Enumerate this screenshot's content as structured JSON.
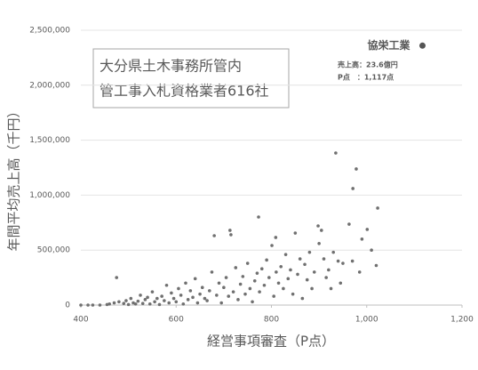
{
  "chart_data": {
    "type": "scatter",
    "x_label": "経営事項審査（P点）",
    "y_label": "年間平均売上高（千円）",
    "title_box": [
      "大分県土木事務所管内",
      "管工事入札資格業者616社"
    ],
    "highlight_notes": [
      "売上高：23.6億円",
      "P点　：1,117点"
    ],
    "xlim": [
      400,
      1200
    ],
    "xticks": [
      400,
      600,
      800,
      {
        "value": 1000,
        "label": "1,000"
      },
      {
        "value": 1200,
        "label": "1,200"
      }
    ],
    "ylim": [
      0,
      2500000
    ],
    "yticks": [
      0,
      {
        "value": 500000,
        "label": "500,000"
      },
      {
        "value": 1000000,
        "label": "1,000,000"
      },
      {
        "value": 1500000,
        "label": "1,500,000"
      },
      {
        "value": 2000000,
        "label": "2,000,000"
      },
      {
        "value": 2500000,
        "label": "2,500,000"
      }
    ],
    "grid": true,
    "series": [
      {
        "color": "#707070",
        "x": [
          400,
          415,
          425,
          440,
          455,
          460,
          470,
          475,
          480,
          490,
          495,
          500,
          505,
          510,
          515,
          520,
          525,
          530,
          535,
          540,
          545,
          550,
          555,
          560,
          565,
          570,
          575,
          580,
          585,
          590,
          595,
          600,
          605,
          610,
          615,
          620,
          625,
          630,
          635,
          640,
          645,
          650,
          655,
          660,
          665,
          670,
          675,
          680,
          685,
          690,
          695,
          700,
          705,
          710,
          713,
          715,
          720,
          725,
          730,
          735,
          740,
          745,
          750,
          755,
          760,
          765,
          770,
          773,
          775,
          780,
          785,
          790,
          795,
          801,
          805,
          809,
          810,
          815,
          820,
          825,
          830,
          835,
          840,
          845,
          850,
          855,
          860,
          865,
          870,
          875,
          880,
          885,
          890,
          898,
          900,
          905,
          910,
          915,
          920,
          925,
          930,
          935,
          940,
          945,
          950,
          963,
          970,
          971,
          978,
          985,
          990,
          1001,
          1010,
          1020,
          1023
        ],
        "values": [
          0,
          0,
          0,
          0,
          5000,
          10000,
          20000,
          250000,
          30000,
          15000,
          40000,
          5000,
          60000,
          20000,
          10000,
          35000,
          90000,
          15000,
          50000,
          70000,
          10000,
          120000,
          30000,
          60000,
          5000,
          80000,
          40000,
          180000,
          20000,
          110000,
          60000,
          30000,
          150000,
          90000,
          10000,
          200000,
          50000,
          130000,
          70000,
          240000,
          20000,
          100000,
          160000,
          60000,
          40000,
          130000,
          300000,
          631000,
          90000,
          200000,
          20000,
          160000,
          250000,
          80000,
          680000,
          640000,
          120000,
          340000,
          50000,
          190000,
          260000,
          100000,
          380000,
          150000,
          30000,
          220000,
          290000,
          801000,
          120000,
          330000,
          180000,
          410000,
          250000,
          542000,
          80000,
          615000,
          300000,
          200000,
          350000,
          150000,
          460000,
          240000,
          320000,
          100000,
          655000,
          280000,
          420000,
          60000,
          370000,
          230000,
          480000,
          150000,
          300000,
          720000,
          560000,
          680000,
          420000,
          250000,
          320000,
          150000,
          480000,
          1383000,
          400000,
          200000,
          380000,
          736000,
          400000,
          1060000,
          1238000,
          300000,
          600000,
          688000,
          500000,
          360000,
          882000
        ]
      },
      {
        "name": "協栄工業",
        "color": "#555555",
        "x": [
          1117
        ],
        "values": [
          2360000
        ]
      }
    ]
  }
}
